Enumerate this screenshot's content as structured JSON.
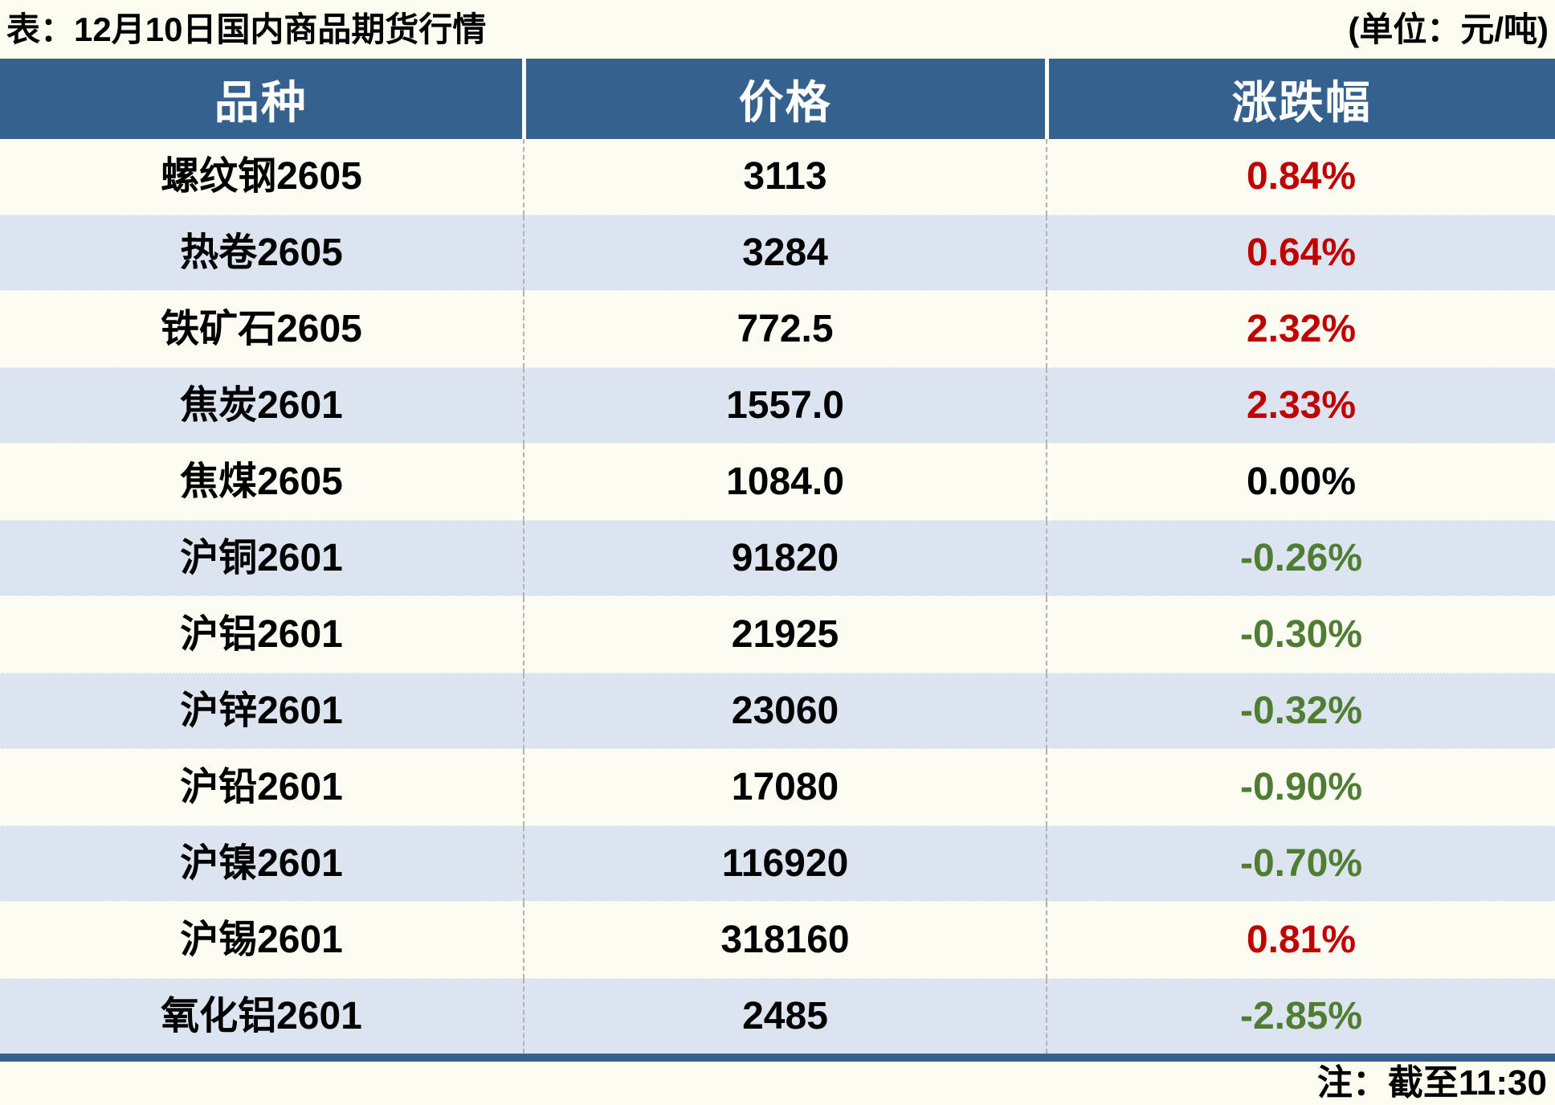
{
  "colors": {
    "header_bg": "#35618f",
    "row_alt_bg": "#dce5ef",
    "page_bg": "#fdfcf1",
    "up_text": "#c00000",
    "down_text": "#4e7d33",
    "flat_text": "#000000",
    "column_divider": "#b3b3b3"
  },
  "chart_data": {
    "type": "table",
    "title": "表：12月10日国内商品期货行情",
    "unit_label": "(单位：元/吨)",
    "footnote": "注：截至11:30",
    "columns": [
      "品种",
      "价格",
      "涨跌幅"
    ],
    "rows": [
      {
        "variety": "螺纹钢2605",
        "price": "3113",
        "change": "0.84%",
        "direction": "up"
      },
      {
        "variety": "热卷2605",
        "price": "3284",
        "change": "0.64%",
        "direction": "up"
      },
      {
        "variety": "铁矿石2605",
        "price": "772.5",
        "change": "2.32%",
        "direction": "up"
      },
      {
        "variety": "焦炭2601",
        "price": "1557.0",
        "change": "2.33%",
        "direction": "up"
      },
      {
        "variety": "焦煤2605",
        "price": "1084.0",
        "change": "0.00%",
        "direction": "flat"
      },
      {
        "variety": "沪铜2601",
        "price": "91820",
        "change": "-0.26%",
        "direction": "down"
      },
      {
        "variety": "沪铝2601",
        "price": "21925",
        "change": "-0.30%",
        "direction": "down"
      },
      {
        "variety": "沪锌2601",
        "price": "23060",
        "change": "-0.32%",
        "direction": "down"
      },
      {
        "variety": "沪铅2601",
        "price": "17080",
        "change": "-0.90%",
        "direction": "down"
      },
      {
        "variety": "沪镍2601",
        "price": "116920",
        "change": "-0.70%",
        "direction": "down"
      },
      {
        "variety": "沪锡2601",
        "price": "318160",
        "change": "0.81%",
        "direction": "up"
      },
      {
        "variety": "氧化铝2601",
        "price": "2485",
        "change": "-2.85%",
        "direction": "down"
      }
    ]
  }
}
